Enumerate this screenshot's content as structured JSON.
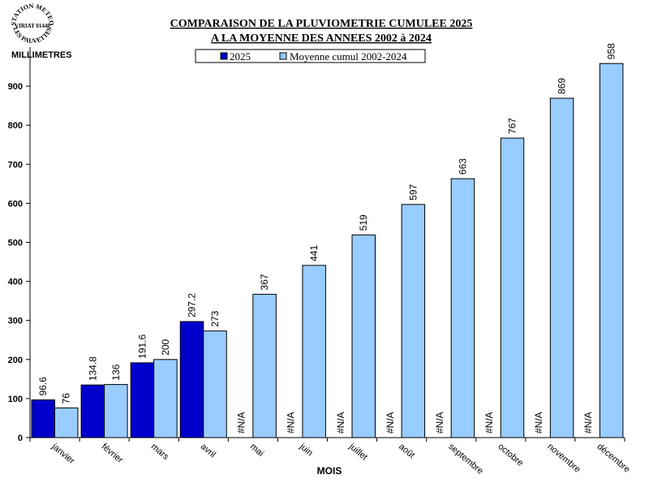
{
  "logo": {
    "top": "STATION METEO",
    "middle": "VIRIAT 01440",
    "bottom": "LES PAUVETTES"
  },
  "chart_data": {
    "type": "bar",
    "title": "COMPARAISON DE LA PLUVIOMETRIE CUMULEE 2025",
    "subtitle": "A LA MOYENNE DES ANNEES 2002 à 2024",
    "ylabel": "MILLIMETRES",
    "xlabel": "MOIS",
    "categories": [
      "janvier",
      "février",
      "mars",
      "avril",
      "mai",
      "juin",
      "juillet",
      "août",
      "septembre",
      "octobre",
      "novembre",
      "décembre"
    ],
    "series": [
      {
        "name": "2025",
        "color": "#0000CC",
        "values": [
          96.6,
          134.8,
          191.6,
          297.2,
          null,
          null,
          null,
          null,
          null,
          null,
          null,
          null
        ]
      },
      {
        "name": "Moyenne cumul 2002-2024",
        "color": "#99CCFF",
        "values": [
          76,
          136,
          200,
          273,
          367,
          441,
          519,
          597,
          663,
          767,
          869,
          958
        ]
      }
    ],
    "na_label": "#N/A",
    "ylim": [
      0,
      1000
    ],
    "yticks": [
      0,
      100,
      200,
      300,
      400,
      500,
      600,
      700,
      800,
      900
    ],
    "legend": "top-center",
    "grid": false
  }
}
